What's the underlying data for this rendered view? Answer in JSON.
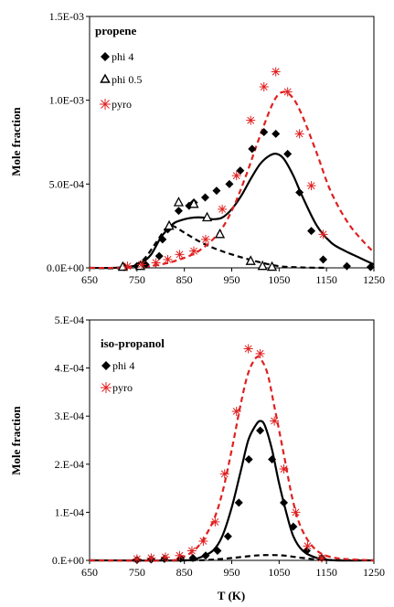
{
  "chart_data": [
    {
      "type": "scatter",
      "title": "propene",
      "xlabel": "",
      "ylabel": "Mole fraction",
      "xlim": [
        650,
        1250
      ],
      "ylim": [
        0,
        0.0015
      ],
      "xticks": [
        650,
        750,
        850,
        950,
        1050,
        1150,
        1250
      ],
      "xtick_labels": [
        "650",
        "750",
        "850",
        "950",
        "1050",
        "1150",
        "1250"
      ],
      "yticks": [
        0,
        0.0005,
        0.001,
        0.0015
      ],
      "ytick_labels": [
        "0.0E+00",
        "5.0E-04",
        "1.0E-03",
        "1.5E-03"
      ],
      "legend_position": "top-left",
      "series": [
        {
          "name": "phi 4",
          "kind": "points",
          "marker": "diamond",
          "color": "#000000",
          "x": [
            723,
            750,
            768,
            797,
            804,
            815,
            838,
            860,
            870,
            894,
            918,
            945,
            968,
            993,
            1018,
            1043,
            1068,
            1093,
            1118,
            1143,
            1193,
            1243
          ],
          "y": [
            5e-06,
            1e-05,
            2e-05,
            7e-05,
            0.00017,
            0.00023,
            0.00034,
            0.00037,
            0.00039,
            0.00042,
            0.00046,
            0.0005,
            0.00058,
            0.00071,
            0.00081,
            0.0008,
            0.00068,
            0.00045,
            0.00022,
            5e-05,
            1e-05,
            5e-06
          ]
        },
        {
          "name": "phi 0.5",
          "kind": "points",
          "marker": "triangle-open",
          "color": "#000000",
          "x": [
            720,
            757,
            818,
            838,
            870,
            898,
            925,
            990,
            1015,
            1035
          ],
          "y": [
            5e-06,
            1e-05,
            0.00025,
            0.00039,
            0.00038,
            0.0003,
            0.0002,
            4e-05,
            1e-05,
            5e-06
          ]
        },
        {
          "name": "pyro",
          "kind": "points",
          "marker": "asterisk",
          "color": "#e02020",
          "x": [
            730,
            760,
            790,
            815,
            840,
            870,
            895,
            930,
            960,
            990,
            1018,
            1043,
            1068,
            1093,
            1118,
            1143
          ],
          "y": [
            1e-05,
            2e-05,
            3e-05,
            5e-05,
            8e-05,
            0.0001,
            0.00017,
            0.00035,
            0.00055,
            0.00088,
            0.00108,
            0.00117,
            0.00105,
            0.0008,
            0.00049,
            0.0002
          ]
        },
        {
          "kind": "line",
          "dash": "solid",
          "color": "#000000",
          "x": [
            650,
            700,
            740,
            760,
            780,
            800,
            815,
            830,
            850,
            870,
            890,
            910,
            930,
            950,
            970,
            990,
            1010,
            1030,
            1045,
            1060,
            1080,
            1100,
            1130,
            1160,
            1190,
            1220,
            1250
          ],
          "y": [
            0,
            0,
            1e-05,
            3e-05,
            8e-05,
            0.00018,
            0.00023,
            0.00027,
            0.00029,
            0.0003,
            0.0003,
            0.00029,
            0.0003,
            0.00035,
            0.00043,
            0.00053,
            0.00062,
            0.00067,
            0.00068,
            0.00065,
            0.00055,
            0.00042,
            0.00025,
            0.00015,
            0.0001,
            6e-05,
            2e-05
          ]
        },
        {
          "kind": "line",
          "dash": "dashed",
          "color": "#000000",
          "x": [
            650,
            720,
            760,
            790,
            810,
            825,
            850,
            880,
            910,
            950,
            1000,
            1050,
            1100,
            1150
          ],
          "y": [
            0,
            0,
            4e-05,
            0.00015,
            0.00023,
            0.00025,
            0.00021,
            0.00016,
            0.00012,
            8e-05,
            4e-05,
            1e-05,
            2e-06,
            0
          ]
        },
        {
          "kind": "line",
          "dash": "dashed",
          "color": "#e02020",
          "x": [
            650,
            720,
            760,
            800,
            840,
            880,
            920,
            950,
            980,
            1010,
            1040,
            1060,
            1080,
            1100,
            1130,
            1160,
            1200,
            1250
          ],
          "y": [
            0,
            0,
            5e-06,
            2e-05,
            5e-05,
            0.0001,
            0.0002,
            0.00034,
            0.00055,
            0.00079,
            0.001,
            0.00105,
            0.00101,
            0.0009,
            0.00068,
            0.00045,
            0.00025,
            9e-05
          ]
        }
      ]
    },
    {
      "type": "scatter",
      "title": "iso-propanol",
      "xlabel": "T (K)",
      "ylabel": "Mole fraction",
      "xlim": [
        650,
        1250
      ],
      "ylim": [
        0,
        0.0005
      ],
      "xticks": [
        650,
        750,
        850,
        950,
        1050,
        1150,
        1250
      ],
      "xtick_labels": [
        "650",
        "750",
        "850",
        "950",
        "1050",
        "1150",
        "1250"
      ],
      "yticks": [
        0,
        0.0001,
        0.0002,
        0.0003,
        0.0004,
        0.0005
      ],
      "ytick_labels": [
        "0.E+00",
        "1.E-04",
        "2.E-04",
        "3.E-04",
        "4.E-04",
        "5.E-04"
      ],
      "legend_position": "top-left",
      "series": [
        {
          "name": "phi 4",
          "kind": "points",
          "marker": "diamond",
          "color": "#000000",
          "x": [
            750,
            780,
            808,
            842,
            868,
            895,
            920,
            942,
            965,
            986,
            1010,
            1035,
            1060,
            1080,
            1108,
            1140
          ],
          "y": [
            1e-06,
            2e-06,
            3e-06,
            4e-06,
            5e-06,
            1e-05,
            2e-05,
            5e-05,
            0.00012,
            0.00021,
            0.00027,
            0.00021,
            0.00012,
            7e-05,
            2e-05,
            5e-06
          ]
        },
        {
          "name": "pyro",
          "kind": "points",
          "marker": "asterisk",
          "color": "#e02020",
          "x": [
            750,
            780,
            810,
            840,
            866,
            890,
            915,
            935,
            960,
            985,
            1010,
            1040,
            1060,
            1085,
            1110,
            1140
          ],
          "y": [
            3e-06,
            5e-06,
            7e-06,
            1e-05,
            2e-05,
            4e-05,
            8e-05,
            0.00018,
            0.00031,
            0.00044,
            0.00043,
            0.00029,
            0.00019,
            0.0001,
            3e-05,
            5e-06
          ]
        },
        {
          "kind": "line",
          "dash": "solid",
          "color": "#000000",
          "x": [
            650,
            850,
            880,
            910,
            930,
            950,
            970,
            985,
            1000,
            1010,
            1020,
            1035,
            1050,
            1065,
            1080,
            1100,
            1130,
            1170,
            1250
          ],
          "y": [
            0,
            0,
            5e-06,
            2e-05,
            5e-05,
            0.00011,
            0.00019,
            0.00025,
            0.00028,
            0.00029,
            0.00028,
            0.00023,
            0.00016,
            0.0001,
            5e-05,
            2e-05,
            5e-06,
            0,
            0
          ]
        },
        {
          "kind": "line",
          "dash": "dashed",
          "color": "#000000",
          "x": [
            650,
            850,
            900,
            950,
            1000,
            1030,
            1060,
            1100,
            1150,
            1250
          ],
          "y": [
            0,
            0,
            1e-06,
            5e-06,
            1e-05,
            1.1e-05,
            1e-05,
            5e-06,
            1e-06,
            0
          ]
        },
        {
          "kind": "line",
          "dash": "dashed",
          "color": "#e02020",
          "x": [
            650,
            820,
            850,
            880,
            910,
            930,
            950,
            970,
            985,
            1000,
            1010,
            1025,
            1040,
            1060,
            1080,
            1100,
            1130,
            1170,
            1250
          ],
          "y": [
            0,
            0,
            8e-06,
            3e-05,
            8e-05,
            0.00014,
            0.00023,
            0.00033,
            0.00039,
            0.00042,
            0.00042,
            0.00039,
            0.00032,
            0.00022,
            0.00012,
            6e-05,
            2e-05,
            5e-06,
            0
          ]
        }
      ]
    }
  ]
}
